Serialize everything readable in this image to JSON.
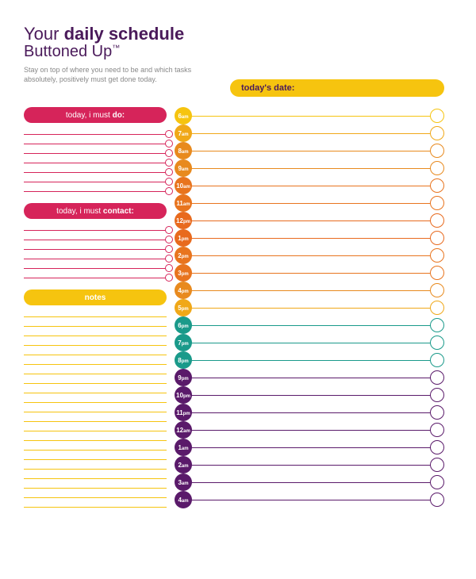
{
  "header": {
    "title_prefix": "Your ",
    "title_bold": "daily schedule",
    "subtitle": "Buttoned Up",
    "trademark": "™",
    "tagline": "Stay on top of where you need to be and which tasks absolutely, positively must get done today."
  },
  "date_section": {
    "label": "today's date:",
    "bg_color": "#f6c40f",
    "text_color": "#4a1a5a"
  },
  "left_sections": [
    {
      "pill_bg": "#d6245a",
      "pill_prefix": "today, i must ",
      "pill_bold": "do:",
      "line_color": "#d6245a",
      "line_count": 7,
      "circles": true
    },
    {
      "pill_bg": "#d6245a",
      "pill_prefix": "today, i must ",
      "pill_bold": "contact:",
      "line_color": "#d6245a",
      "line_count": 6,
      "circles": true
    },
    {
      "pill_bg": "#f6c40f",
      "pill_prefix": "",
      "pill_bold": "notes",
      "line_color": "#f6c40f",
      "line_count": 21,
      "circles": false
    }
  ],
  "hours": [
    {
      "label": "6",
      "ampm": "am",
      "color": "#f6c40f"
    },
    {
      "label": "7",
      "ampm": "am",
      "color": "#f0a818"
    },
    {
      "label": "8",
      "ampm": "am",
      "color": "#e88a1e"
    },
    {
      "label": "9",
      "ampm": "am",
      "color": "#e88a1e"
    },
    {
      "label": "10",
      "ampm": "am",
      "color": "#e8741e"
    },
    {
      "label": "11",
      "ampm": "am",
      "color": "#e8741e"
    },
    {
      "label": "12",
      "ampm": "pm",
      "color": "#e86a1e"
    },
    {
      "label": "1",
      "ampm": "pm",
      "color": "#e86a1e"
    },
    {
      "label": "2",
      "ampm": "pm",
      "color": "#e8741e"
    },
    {
      "label": "3",
      "ampm": "pm",
      "color": "#e8741e"
    },
    {
      "label": "4",
      "ampm": "pm",
      "color": "#e88a1e"
    },
    {
      "label": "5",
      "ampm": "pm",
      "color": "#f0a818"
    },
    {
      "label": "6",
      "ampm": "pm",
      "color": "#1a9a8a"
    },
    {
      "label": "7",
      "ampm": "pm",
      "color": "#1a9a8a"
    },
    {
      "label": "8",
      "ampm": "pm",
      "color": "#1a9a8a"
    },
    {
      "label": "9",
      "ampm": "pm",
      "color": "#5a1a6a"
    },
    {
      "label": "10",
      "ampm": "pm",
      "color": "#5a1a6a"
    },
    {
      "label": "11",
      "ampm": "pm",
      "color": "#5a1a6a"
    },
    {
      "label": "12",
      "ampm": "am",
      "color": "#5a1a6a"
    },
    {
      "label": "1",
      "ampm": "am",
      "color": "#5a1a6a"
    },
    {
      "label": "2",
      "ampm": "am",
      "color": "#5a1a6a"
    },
    {
      "label": "3",
      "ampm": "am",
      "color": "#5a1a6a"
    },
    {
      "label": "4",
      "ampm": "am",
      "color": "#5a1a6a"
    }
  ]
}
